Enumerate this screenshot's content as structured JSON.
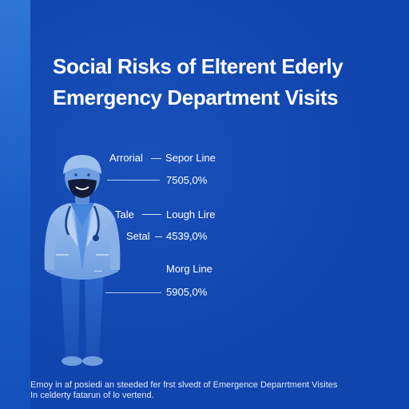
{
  "title": {
    "line1": "Social Risks of Elterent Ederly",
    "line2": "Emergency Department Visits"
  },
  "labels": {
    "row1_left": "Arrorial",
    "row1_right": "Sepor Line",
    "row1_value": "7505,0%",
    "row2_left": "Tale",
    "row2_right": "Lough Lire",
    "row3_left": "Setal",
    "row3_value": "4539,0%",
    "row4_right": "Morg Line",
    "row4_value": "5905,0%"
  },
  "footnote": {
    "line1": "Emoy in af posiedi an steeded fer frst slvedt of Emergence Deparrtment Visites",
    "line2": "In celderty fatarun of lo vertend."
  },
  "icons": {
    "figure": "doctor-figure-icon"
  },
  "colors": {
    "background": "#1045ad",
    "left_strip": "#2f76d6",
    "figure_light": "#8fb4ea",
    "figure_dark": "#1f56bb",
    "text": "#ffffff"
  }
}
